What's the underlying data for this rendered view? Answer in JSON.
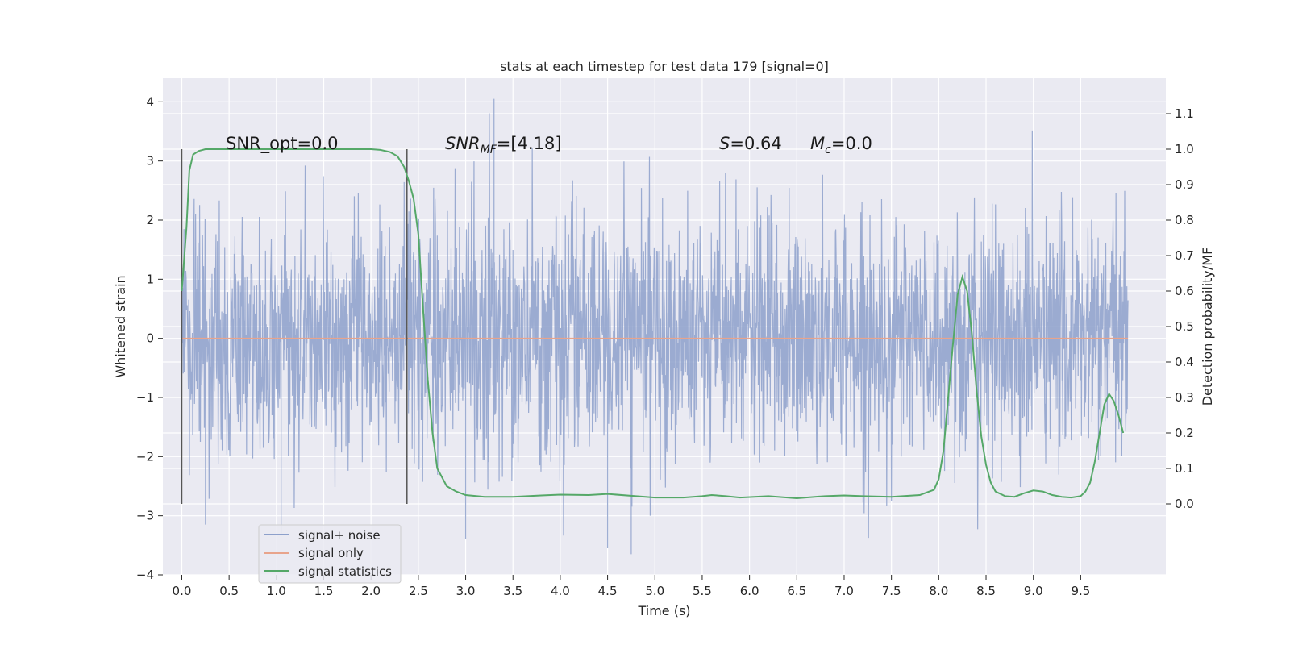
{
  "chart_data": {
    "type": "line",
    "title": "stats at each timestep for test data 179 [signal=0]",
    "xlabel": "Time (s)",
    "ylabel": "Whitened strain",
    "ylabel_right": "Detection probability/MF",
    "xlim": [
      -0.2,
      10.4
    ],
    "ylim": [
      -4.0,
      4.4
    ],
    "ylim_right": [
      -0.2,
      1.2
    ],
    "x_ticks": [
      0.0,
      0.5,
      1.0,
      1.5,
      2.0,
      2.5,
      3.0,
      3.5,
      4.0,
      4.5,
      5.0,
      5.5,
      6.0,
      6.5,
      7.0,
      7.5,
      8.0,
      8.5,
      9.0,
      9.5
    ],
    "x_tick_labels": [
      "0.0",
      "0.5",
      "1.0",
      "1.5",
      "2.0",
      "2.5",
      "3.0",
      "3.5",
      "4.0",
      "4.5",
      "5.0",
      "5.5",
      "6.0",
      "6.5",
      "7.0",
      "7.5",
      "8.0",
      "8.5",
      "9.0",
      "9.5"
    ],
    "y_ticks": [
      -4,
      -3,
      -2,
      -1,
      0,
      1,
      2,
      3,
      4
    ],
    "y_tick_labels": [
      "−4",
      "−3",
      "−2",
      "−1",
      "0",
      "1",
      "2",
      "3",
      "4"
    ],
    "y_right_ticks": [
      0.0,
      0.1,
      0.2,
      0.3,
      0.4,
      0.5,
      0.6,
      0.7,
      0.8,
      0.9,
      1.0,
      1.1
    ],
    "y_right_tick_labels": [
      "0.0",
      "0.1",
      "0.2",
      "0.3",
      "0.4",
      "0.5",
      "0.6",
      "0.7",
      "0.8",
      "0.9",
      "1.0",
      "1.1"
    ],
    "grid": true,
    "legend": {
      "position": "lower-left",
      "entries": [
        "signal+ noise",
        "signal only",
        "signal statistics"
      ]
    },
    "annotations": {
      "snr_opt": "SNR_opt=0.0",
      "snr_mf_base": "SNR",
      "snr_mf_sub": "MF",
      "snr_mf_value": "=[4.18]",
      "s_sym": "S",
      "s_value": "=0.64",
      "mc_sym": "M",
      "mc_sub": "c",
      "mc_value": "=0.0"
    },
    "vertical_markers_x": [
      0.0,
      2.38
    ],
    "vertical_markers_range": [
      -2.8,
      3.2
    ],
    "series": [
      {
        "name": "signal+ noise",
        "axis": "left",
        "color": "#8da0cb",
        "x_range": [
          0.0,
          10.0
        ],
        "envelope_max": 4.05,
        "envelope_min": -3.65,
        "peaks": [
          [
            3.3,
            4.05
          ],
          [
            4.5,
            -3.55
          ],
          [
            4.75,
            -3.65
          ],
          [
            3.0,
            -3.4
          ],
          [
            1.05,
            -3.3
          ],
          [
            0.25,
            -3.15
          ]
        ]
      },
      {
        "name": "signal only",
        "axis": "left",
        "color": "#e8a48c",
        "x": [
          0.0,
          10.0
        ],
        "y": [
          0.0,
          0.0
        ]
      },
      {
        "name": "signal statistics",
        "axis": "right",
        "color": "#55a868",
        "x": [
          0.0,
          0.05,
          0.08,
          0.12,
          0.18,
          0.25,
          0.4,
          0.8,
          1.2,
          1.6,
          2.0,
          2.1,
          2.2,
          2.28,
          2.35,
          2.4,
          2.45,
          2.5,
          2.55,
          2.6,
          2.65,
          2.7,
          2.8,
          2.9,
          3.0,
          3.2,
          3.5,
          3.8,
          4.0,
          4.3,
          4.5,
          4.8,
          5.0,
          5.3,
          5.5,
          5.6,
          5.75,
          5.9,
          6.2,
          6.5,
          6.8,
          7.0,
          7.2,
          7.5,
          7.8,
          7.95,
          8.0,
          8.05,
          8.1,
          8.15,
          8.2,
          8.25,
          8.3,
          8.35,
          8.4,
          8.45,
          8.5,
          8.55,
          8.6,
          8.7,
          8.8,
          8.9,
          9.0,
          9.1,
          9.2,
          9.3,
          9.4,
          9.5,
          9.55,
          9.6,
          9.65,
          9.7,
          9.75,
          9.8,
          9.85,
          9.9,
          9.95
        ],
        "y": [
          0.6,
          0.78,
          0.94,
          0.985,
          0.995,
          1.0,
          1.0,
          1.0,
          1.0,
          1.0,
          1.0,
          0.998,
          0.992,
          0.98,
          0.95,
          0.91,
          0.86,
          0.76,
          0.55,
          0.35,
          0.2,
          0.1,
          0.05,
          0.035,
          0.025,
          0.02,
          0.02,
          0.024,
          0.026,
          0.025,
          0.028,
          0.022,
          0.018,
          0.018,
          0.022,
          0.025,
          0.022,
          0.018,
          0.022,
          0.016,
          0.022,
          0.024,
          0.022,
          0.02,
          0.025,
          0.04,
          0.07,
          0.15,
          0.3,
          0.45,
          0.59,
          0.64,
          0.6,
          0.48,
          0.32,
          0.19,
          0.11,
          0.06,
          0.035,
          0.022,
          0.02,
          0.03,
          0.038,
          0.035,
          0.025,
          0.02,
          0.018,
          0.022,
          0.035,
          0.06,
          0.12,
          0.2,
          0.28,
          0.31,
          0.29,
          0.25,
          0.2
        ]
      }
    ]
  }
}
